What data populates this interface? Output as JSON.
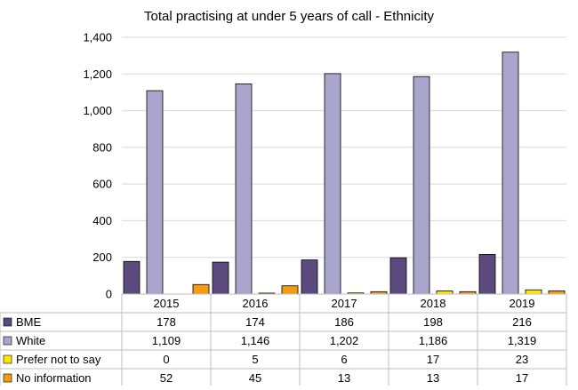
{
  "chart_data": {
    "type": "bar",
    "title": "Total practising at under 5 years of call - Ethnicity",
    "categories": [
      "2015",
      "2016",
      "2017",
      "2018",
      "2019"
    ],
    "ylim": [
      0,
      1400
    ],
    "yticks": [
      0,
      200,
      400,
      600,
      800,
      1000,
      1200,
      1400
    ],
    "ytick_labels": [
      "0",
      "200",
      "400",
      "600",
      "800",
      "1,000",
      "1,200",
      "1,400"
    ],
    "grid": true,
    "legend": "data-table-below",
    "series": [
      {
        "name": "BME",
        "color": "#5b4a7d",
        "values": [
          178,
          174,
          186,
          198,
          216
        ],
        "labels": [
          "178",
          "174",
          "186",
          "198",
          "216"
        ]
      },
      {
        "name": "White",
        "color": "#a9a5cc",
        "values": [
          1109,
          1146,
          1202,
          1186,
          1319
        ],
        "labels": [
          "1,109",
          "1,146",
          "1,202",
          "1,186",
          "1,319"
        ]
      },
      {
        "name": "Prefer not to say",
        "color": "#ffe600",
        "values": [
          0,
          5,
          6,
          17,
          23
        ],
        "labels": [
          "0",
          "5",
          "6",
          "17",
          "23"
        ]
      },
      {
        "name": "No information",
        "color": "#f39c12",
        "values": [
          52,
          45,
          13,
          13,
          17
        ],
        "labels": [
          "52",
          "45",
          "13",
          "13",
          "17"
        ]
      }
    ]
  }
}
